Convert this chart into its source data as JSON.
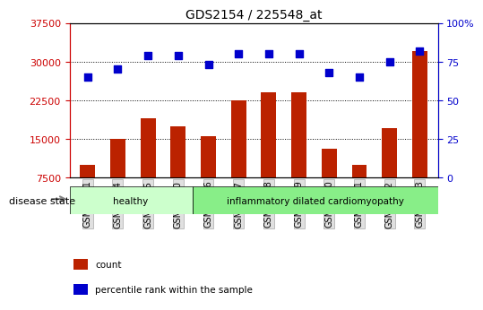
{
  "title": "GDS2154 / 225548_at",
  "samples": [
    "GSM94831",
    "GSM94854",
    "GSM94855",
    "GSM94870",
    "GSM94836",
    "GSM94837",
    "GSM94838",
    "GSM94839",
    "GSM94840",
    "GSM94841",
    "GSM94842",
    "GSM94843"
  ],
  "counts": [
    10000,
    15000,
    19000,
    17500,
    15500,
    22500,
    24000,
    24000,
    13000,
    10000,
    17000,
    32000
  ],
  "percentiles": [
    65,
    70,
    79,
    79,
    73,
    80,
    80,
    80,
    68,
    65,
    75,
    82
  ],
  "bar_color": "#bb2200",
  "dot_color": "#0000cc",
  "left_ylim": [
    7500,
    37500
  ],
  "left_yticks": [
    7500,
    15000,
    22500,
    30000,
    37500
  ],
  "right_ylim": [
    0,
    100
  ],
  "right_yticks": [
    0,
    25,
    50,
    75,
    100
  ],
  "right_yticklabels": [
    "0",
    "25",
    "50",
    "75",
    "100%"
  ],
  "left_ycolor": "#cc0000",
  "right_ycolor": "#0000cc",
  "groups": [
    {
      "label": "healthy",
      "start": 0,
      "end": 4,
      "color": "#ccffcc"
    },
    {
      "label": "inflammatory dilated cardiomyopathy",
      "start": 4,
      "end": 12,
      "color": "#88ee88"
    }
  ],
  "disease_state_label": "disease state",
  "legend": [
    {
      "label": "count",
      "color": "#bb2200"
    },
    {
      "label": "percentile rank within the sample",
      "color": "#0000cc"
    }
  ],
  "grid_color": "#000000",
  "background_color": "#ffffff",
  "plot_bg": "#ffffff"
}
